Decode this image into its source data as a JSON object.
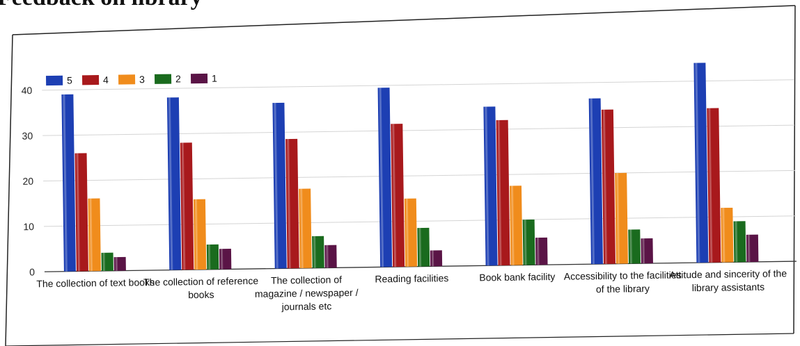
{
  "page": {
    "heading": "Feedback on library"
  },
  "chart_data": {
    "type": "bar",
    "title": "",
    "xlabel": "",
    "ylabel": "",
    "ylim": [
      0,
      45
    ],
    "yticks": [
      0,
      10,
      20,
      30,
      40
    ],
    "grid": true,
    "legend_position": "top-left",
    "categories": [
      [
        "The collection of text books"
      ],
      [
        "The collection of reference",
        "books"
      ],
      [
        "The collection of",
        "magazine / newspaper /",
        "journals etc"
      ],
      [
        "Reading facilities"
      ],
      [
        "Book bank facility"
      ],
      [
        "Accessibility to the facilities",
        "of the library"
      ],
      [
        "Attitude and sincerity of the",
        "library assistants"
      ]
    ],
    "series": [
      {
        "name": "5",
        "color": "#1d3fb3",
        "values": [
          39,
          38,
          36.5,
          39.5,
          35,
          36.5,
          44
        ]
      },
      {
        "name": "4",
        "color": "#a8191c",
        "values": [
          26,
          28,
          28.5,
          31.5,
          32,
          34,
          34
        ]
      },
      {
        "name": "3",
        "color": "#f08c1c",
        "values": [
          16,
          15.5,
          17.5,
          15,
          17.5,
          20,
          12
        ]
      },
      {
        "name": "2",
        "color": "#1a6b1e",
        "values": [
          4,
          5.5,
          7,
          8.5,
          10,
          7.5,
          9
        ]
      },
      {
        "name": "1",
        "color": "#5a1446",
        "values": [
          3,
          4.5,
          5,
          3.5,
          6,
          5.5,
          6
        ]
      }
    ]
  }
}
